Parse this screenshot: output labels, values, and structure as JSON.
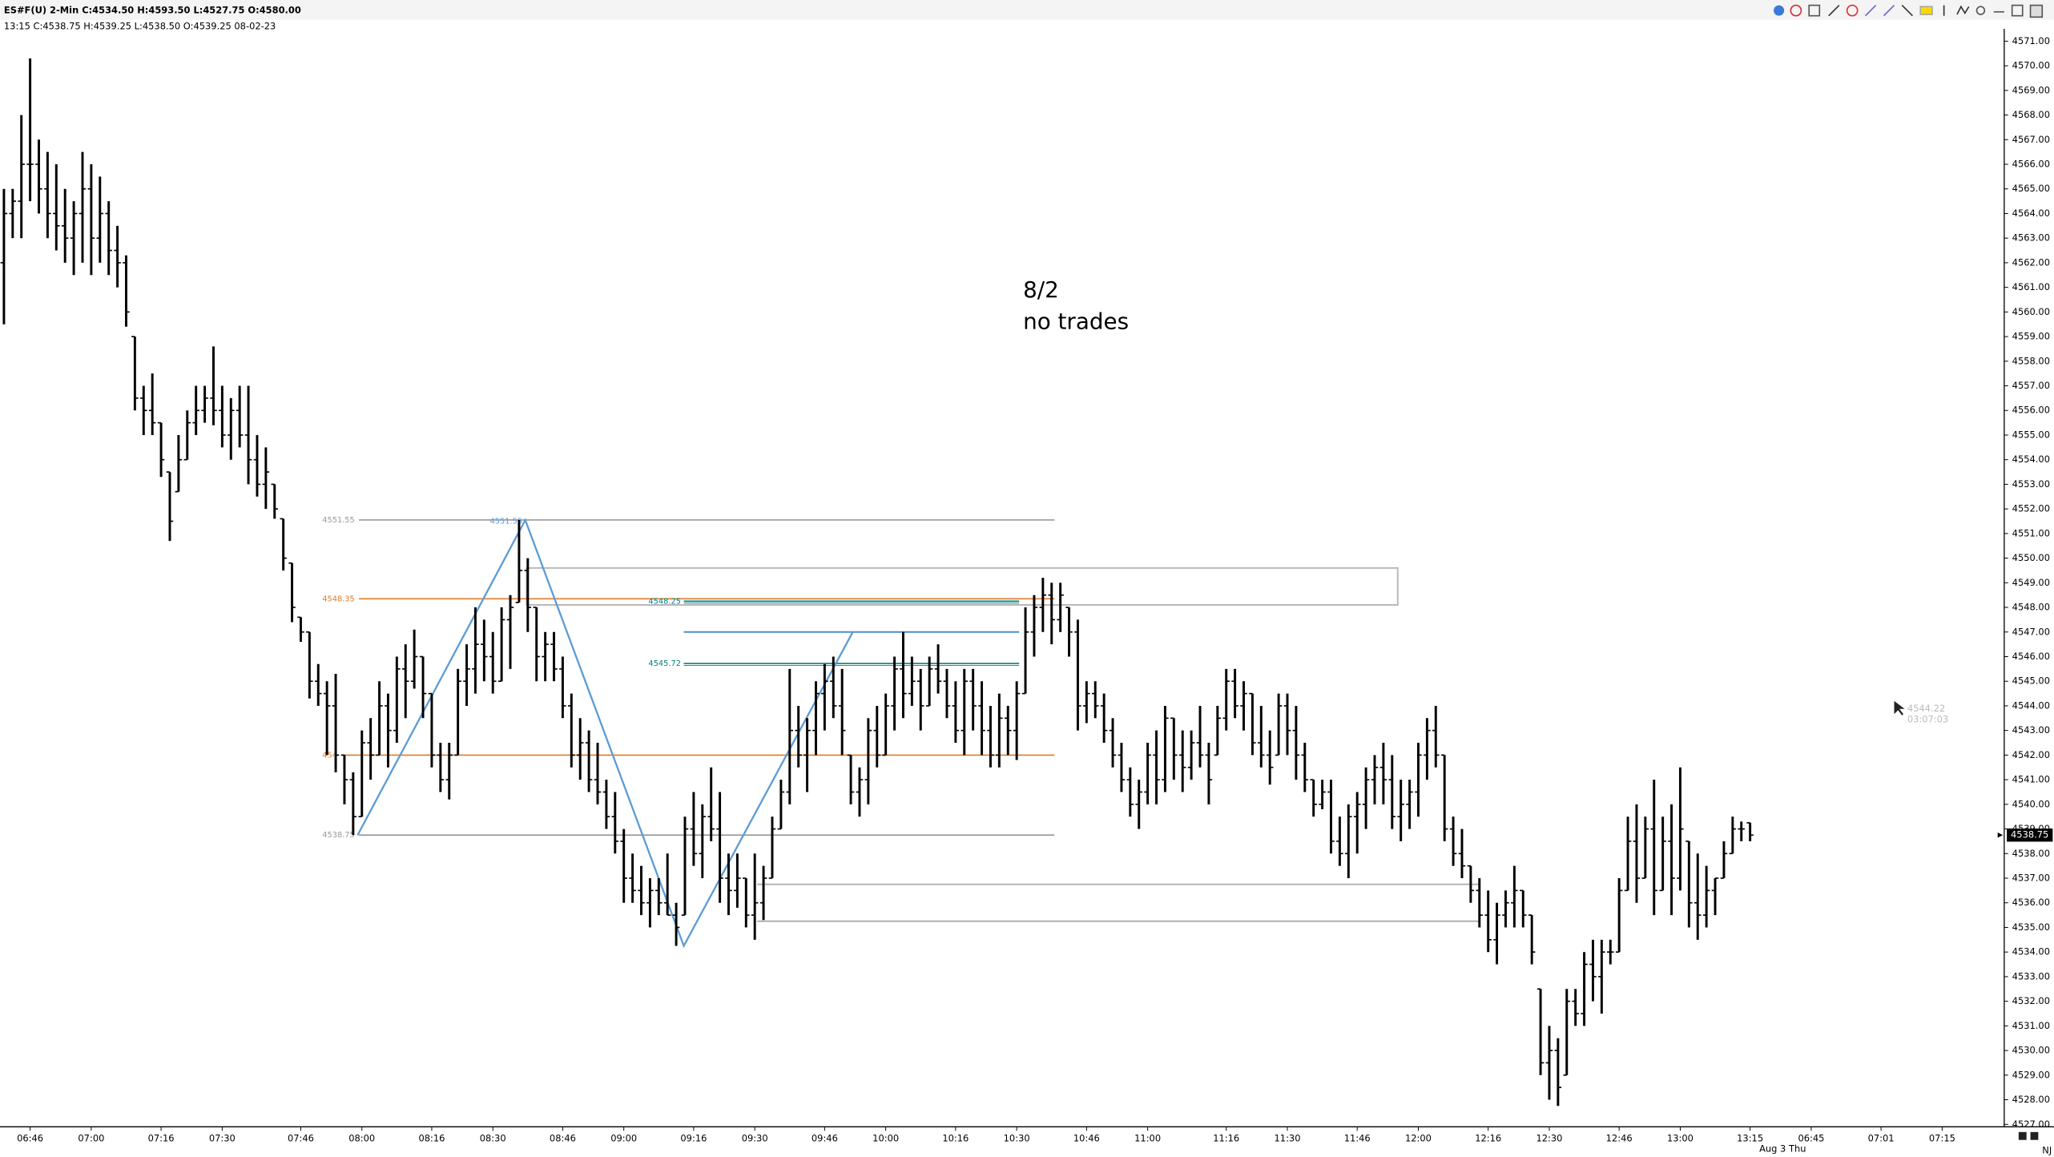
{
  "chart_data": {
    "type": "ohlc",
    "header": "ES#F(U)  2-Min  C:4534.50  H:4593.50  L:4527.75  O:4580.00",
    "subheader": "13:15  C:4538.75  H:4539.25  L:4538.50  O:4539.25  08-02-23",
    "annotation": [
      "8/2",
      "no trades"
    ],
    "date_label": "Aug 3 Thu",
    "corner_label": "NJ",
    "cursor_labels": [
      "4544.22",
      "03:07:03"
    ],
    "bar_color": "#000000",
    "categories": [
      null,
      null,
      null,
      "06:46",
      null,
      null,
      null,
      null,
      null,
      null,
      "07:00",
      null,
      null,
      null,
      null,
      null,
      null,
      null,
      "07:16",
      null,
      null,
      null,
      null,
      null,
      null,
      "07:30",
      null,
      null,
      null,
      null,
      null,
      null,
      null,
      null,
      "07:46",
      null,
      null,
      null,
      null,
      null,
      null,
      "08:00",
      null,
      null,
      null,
      null,
      null,
      null,
      null,
      "08:16",
      null,
      null,
      null,
      null,
      null,
      null,
      "08:30",
      null,
      null,
      null,
      null,
      null,
      null,
      null,
      "08:46",
      null,
      null,
      null,
      null,
      null,
      null,
      "09:00",
      null,
      null,
      null,
      null,
      null,
      null,
      null,
      "09:16",
      null,
      null,
      null,
      null,
      null,
      null,
      "09:30",
      null,
      null,
      null,
      null,
      null,
      null,
      null,
      "09:46",
      null,
      null,
      null,
      null,
      null,
      null,
      "10:00",
      null,
      null,
      null,
      null,
      null,
      null,
      null,
      "10:16",
      null,
      null,
      null,
      null,
      null,
      null,
      "10:30",
      null,
      null,
      null,
      null,
      null,
      null,
      null,
      "10:46",
      null,
      null,
      null,
      null,
      null,
      null,
      "11:00",
      null,
      null,
      null,
      null,
      null,
      null,
      null,
      null,
      "11:16",
      null,
      null,
      null,
      null,
      null,
      null,
      "11:30",
      null,
      null,
      null,
      null,
      null,
      null,
      null,
      "11:46",
      null,
      null,
      null,
      null,
      null,
      null,
      "12:00",
      null,
      null,
      null,
      null,
      null,
      null,
      null,
      "12:16",
      null,
      null,
      null,
      null,
      null,
      null,
      "12:30",
      null,
      null,
      null,
      null,
      null,
      null,
      null,
      "12:46",
      null,
      null,
      null,
      null,
      null,
      null,
      "13:00",
      null,
      null,
      null,
      null,
      null,
      null,
      null,
      "13:15",
      null,
      null,
      null,
      null,
      null,
      null,
      "06:45",
      null,
      null,
      null,
      null,
      null,
      null,
      null,
      "07:01",
      null,
      null,
      null,
      null,
      null,
      null,
      "07:15",
      null,
      null,
      null,
      null,
      null,
      null,
      null
    ],
    "open": [
      4562,
      4564,
      4564.5,
      4566,
      4566,
      4565,
      4564,
      4563.5,
      4563,
      4564,
      4565,
      4563,
      4564,
      4562.5,
      4562,
      4559,
      4556.5,
      4556,
      4555.5,
      4553.5,
      4552.7,
      4554,
      4555.5,
      4556,
      4556.5,
      4556,
      4555,
      4556,
      4555,
      4554,
      4553,
      4553,
      4551.6,
      4549.8,
      4547.6,
      4547,
      4545,
      4544.5,
      4544,
      4542,
      4541,
      4539.5,
      4542.5,
      4542,
      4544,
      4543,
      4545.5,
      4545,
      4546,
      4544.5,
      4542,
      4541,
      4542,
      4545,
      4545.5,
      4546.5,
      4546,
      4545,
      4547.5,
      4548.2,
      4549.5,
      4548,
      4546,
      4546.5,
      4545.5,
      4544,
      4542,
      4542.5,
      4541,
      4540.5,
      4539.5,
      4538.5,
      4537,
      4536.5,
      4536,
      4536.5,
      4536,
      4535.5,
      4535.5,
      4539,
      4538,
      4539.5,
      4539,
      4537,
      4536.5,
      4537,
      4535.5,
      4536,
      4537,
      4539,
      4540.5,
      4543,
      4542,
      4543,
      4544.5,
      4545,
      4544,
      4542,
      4540.5,
      4541,
      4543,
      4542,
      4544,
      4545.5,
      4544.5,
      4545,
      4544,
      4545.5,
      4545,
      4544,
      4543,
      4545,
      4544,
      4543,
      4542,
      4543.5,
      4543,
      4544.5,
      4547,
      4548,
      4548.5,
      4547.5,
      4548,
      4547,
      4544,
      4544.5,
      4544,
      4543,
      4542,
      4541,
      4540,
      4540.5,
      4542,
      4541,
      4543.5,
      4542,
      4541.5,
      4542.5,
      4542,
      4542,
      4543.5,
      4545,
      4544,
      4544.5,
      4542.5,
      4542,
      4542,
      4544,
      4543,
      4542,
      4541,
      4540,
      4540.5,
      4538.5,
      4538,
      4539.5,
      4540,
      4541,
      4541.5,
      4541,
      4539.5,
      4540,
      4540.5,
      4542,
      4543,
      4542,
      4539,
      4538,
      4537.5,
      4536.5,
      4535.5,
      4534.5,
      4535.5,
      4536,
      4536.5,
      4535.5,
      4532.5,
      4529.5,
      4530,
      4529,
      4532,
      4531.5,
      4533.5,
      4533,
      4534,
      4534,
      4536.5,
      4538.5,
      4537,
      4539,
      4536.5,
      4538.5,
      4537,
      4538.5,
      4536,
      4535.5,
      4536.5,
      4537,
      4538,
      4539,
      4539.25,
      null,
      null,
      null,
      null,
      null,
      null,
      null,
      null,
      null,
      null,
      null,
      null,
      null,
      null,
      null,
      null,
      null,
      null,
      null,
      null,
      null,
      null,
      null,
      null,
      null,
      null,
      null,
      null,
      null
    ],
    "high": [
      4565,
      4565,
      4568,
      4570.3,
      4567,
      4566.5,
      4566,
      4565,
      4564.5,
      4566.5,
      4566,
      4565.5,
      4564.5,
      4563.5,
      4562.3,
      4559,
      4557,
      4557.5,
      4555.5,
      4553.5,
      4555,
      4556,
      4557,
      4557,
      4558.6,
      4557,
      4556.5,
      4557,
      4557,
      4555,
      4554.5,
      4553,
      4551.6,
      4549.8,
      4547.6,
      4547,
      4545.7,
      4545,
      4545.3,
      4542,
      4541.3,
      4543,
      4543.5,
      4545,
      4544.5,
      4546,
      4546.5,
      4547.1,
      4546,
      4544.5,
      4542.5,
      4542.5,
      4545.5,
      4546.5,
      4548,
      4547.5,
      4547,
      4548,
      4548.5,
      4551.55,
      4550,
      4548,
      4547,
      4547,
      4546,
      4544.5,
      4543.5,
      4543,
      4542.5,
      4541,
      4540.5,
      4539,
      4538,
      4537.5,
      4537,
      4537,
      4538,
      4536,
      4539.5,
      4540.5,
      4540,
      4541.5,
      4540.5,
      4538,
      4538,
      4537,
      4538,
      4537.5,
      4539.5,
      4541,
      4545.5,
      4544,
      4543.5,
      4545,
      4545.7,
      4546,
      4545.5,
      4542,
      4541.5,
      4543.5,
      4544,
      4544.5,
      4546,
      4547,
      4546,
      4545.5,
      4546,
      4546.5,
      4545.5,
      4545,
      4545.5,
      4545.5,
      4545,
      4544,
      4544.5,
      4544,
      4545,
      4548,
      4548.5,
      4549.2,
      4549,
      4549,
      4548,
      4547.5,
      4545,
      4545,
      4544.5,
      4543.5,
      4542.5,
      4541.5,
      4541,
      4542.5,
      4543,
      4544,
      4543.5,
      4543,
      4543,
      4544,
      4542.5,
      4544,
      4545.5,
      4545.5,
      4545,
      4544.5,
      4544,
      4543,
      4544.5,
      4544.5,
      4544,
      4542.5,
      4541,
      4541,
      4541,
      4539.5,
      4540,
      4540.5,
      4541.5,
      4542,
      4542.5,
      4542,
      4541,
      4541,
      4542.5,
      4543.5,
      4544,
      4542,
      4539.5,
      4539,
      4537.5,
      4537,
      4536.5,
      4536,
      4536.5,
      4537.5,
      4536.5,
      4535.5,
      4532.5,
      4531,
      4530.5,
      4532.5,
      4532.5,
      4534,
      4534.5,
      4534.5,
      4534.5,
      4537,
      4539.5,
      4540,
      4539.5,
      4541,
      4539.5,
      4540,
      4541.5,
      4538.5,
      4538,
      4537.5,
      4537,
      4538.5,
      4539.5,
      4539.3,
      4539.25,
      null,
      null,
      null,
      null,
      null,
      null,
      null,
      null,
      null,
      null,
      null,
      null,
      null,
      null,
      null,
      null,
      null,
      null,
      null,
      null,
      null,
      null,
      null,
      null,
      null,
      null,
      null,
      null,
      null
    ],
    "low": [
      4559.5,
      4563,
      4563,
      4564.5,
      4564,
      4563,
      4562.5,
      4562,
      4561.5,
      4562,
      4561.5,
      4562,
      4561.5,
      4561,
      4559.4,
      4556,
      4555,
      4555,
      4553.3,
      4550.7,
      4552.7,
      4554,
      4555,
      4555.5,
      4555.4,
      4554.5,
      4554,
      4554.5,
      4553,
      4552.5,
      4552,
      4551.6,
      4549.5,
      4547.4,
      4546.6,
      4544.3,
      4544,
      4542,
      4541.3,
      4540,
      4538.75,
      4539.5,
      4541,
      4542,
      4541.5,
      4542.5,
      4543.5,
      4544.7,
      4543.5,
      4541.5,
      4540.5,
      4540.2,
      4542,
      4544,
      4544.5,
      4545,
      4544.5,
      4545,
      4545.5,
      4548.2,
      4547,
      4545,
      4545,
      4545,
      4543.5,
      4541.5,
      4541,
      4540.5,
      4540,
      4539,
      4538,
      4536,
      4536,
      4535.5,
      4535,
      4535.5,
      4535.5,
      4534.25,
      4535.5,
      4537.5,
      4537,
      4538.5,
      4536,
      4535.5,
      4535.8,
      4535,
      4534.5,
      4535.3,
      4537,
      4539,
      4540,
      4541.5,
      4540.5,
      4542,
      4543,
      4543.5,
      4542,
      4540,
      4539.5,
      4540,
      4541.5,
      4542,
      4543,
      4543.5,
      4544,
      4543,
      4544,
      4544.5,
      4543.5,
      4542.5,
      4542,
      4543,
      4542,
      4541.5,
      4541.5,
      4542,
      4541.8,
      4544.5,
      4546,
      4547,
      4546.5,
      4547,
      4546,
      4543,
      4543.3,
      4543.5,
      4542.5,
      4541.5,
      4540.5,
      4539.5,
      4539,
      4540,
      4540,
      4540.5,
      4541,
      4540.5,
      4541,
      4541.5,
      4540,
      4542,
      4543,
      4543.5,
      4543,
      4542,
      4541.5,
      4540.8,
      4542,
      4542,
      4541,
      4540.5,
      4539.5,
      4539.8,
      4538,
      4537.5,
      4537,
      4538,
      4539,
      4540,
      4540,
      4539,
      4538.5,
      4539,
      4539.5,
      4541,
      4541.5,
      4538.5,
      4537.5,
      4537,
      4536,
      4535,
      4534,
      4533.5,
      4535,
      4535,
      4535,
      4533.5,
      4529,
      4528,
      4527.75,
      4529,
      4531,
      4531,
      4532,
      4531.5,
      4533.5,
      4534,
      4536.5,
      4536,
      4537,
      4535.5,
      4536.5,
      4535.5,
      4536.5,
      4535,
      4534.5,
      4535,
      4535.5,
      4537,
      4538,
      4538.5,
      4538.5,
      null,
      null,
      null,
      null,
      null,
      null,
      null,
      null,
      null,
      null,
      null,
      null,
      null,
      null,
      null,
      null,
      null,
      null,
      null,
      null,
      null,
      null,
      null,
      null,
      null,
      null,
      null,
      null,
      null
    ],
    "close": [
      4564,
      4564.5,
      4566,
      4566,
      4565,
      4564,
      4563.5,
      4563,
      4564,
      4565,
      4563,
      4564,
      4562.5,
      4562,
      4560,
      4556.5,
      4556,
      4555.5,
      4554,
      4551.5,
      4554,
      4555.5,
      4556,
      4556.5,
      4556,
      4555,
      4556,
      4555,
      4554,
      4553,
      4553.5,
      4552,
      4550,
      4548,
      4547,
      4545,
      4544.5,
      4544,
      4542,
      4541,
      4539.5,
      4542.5,
      4542,
      4544,
      4543,
      4545.5,
      4545,
      4546,
      4544.5,
      4542,
      4541,
      4542,
      4545,
      4545.5,
      4546.5,
      4546,
      4545,
      4547.5,
      4548,
      4549.5,
      4548,
      4546,
      4546.5,
      4545.5,
      4544,
      4542,
      4542.5,
      4541,
      4540.5,
      4539.5,
      4538.5,
      4537,
      4536.5,
      4536,
      4536.5,
      4536,
      4535.5,
      4535,
      4539,
      4538,
      4539.5,
      4539,
      4537,
      4536.5,
      4537,
      4535.5,
      4536,
      4537,
      4539,
      4540.5,
      4543,
      4542,
      4543,
      4544.5,
      4545,
      4544,
      4543,
      4540.5,
      4541,
      4543,
      4542,
      4544,
      4545.5,
      4544.5,
      4545,
      4544,
      4545.5,
      4545,
      4544,
      4543,
      4545,
      4544,
      4543,
      4542,
      4543.5,
      4543,
      4544.5,
      4547,
      4548,
      4548.5,
      4547.5,
      4548.5,
      4547,
      4544,
      4544.5,
      4544,
      4543,
      4542,
      4541,
      4540,
      4540.5,
      4542,
      4541,
      4543.5,
      4542,
      4541.5,
      4542.5,
      4542,
      4541,
      4543.5,
      4545,
      4544,
      4544.5,
      4542.5,
      4542,
      4541.5,
      4544,
      4543,
      4542,
      4541,
      4540,
      4540.5,
      4538.5,
      4538,
      4539.5,
      4540,
      4541,
      4541.5,
      4541,
      4539.5,
      4540,
      4540.5,
      4542,
      4543,
      4542,
      4539,
      4538,
      4537.5,
      4536.5,
      4535.5,
      4534.5,
      4535.5,
      4536,
      4536.5,
      4535.5,
      4534,
      4529.5,
      4530,
      4528.5,
      4532,
      4531.5,
      4533.5,
      4533,
      4534,
      4534,
      4536.5,
      4538.5,
      4537,
      4539,
      4536.5,
      4538.5,
      4537,
      4539,
      4536,
      4535.5,
      4536.5,
      4537,
      4538,
      4539,
      4539,
      4538.75,
      null,
      null,
      null,
      null,
      null,
      null,
      null,
      null,
      null,
      null,
      null,
      null,
      null,
      null,
      null,
      null,
      null,
      null,
      null,
      null,
      null,
      null,
      null,
      null,
      null,
      null,
      null,
      null,
      null
    ],
    "ylim": [
      4526.9,
      4571.5
    ],
    "yticks": [
      {
        "value": 4527,
        "label": "4527.00"
      },
      {
        "value": 4528,
        "label": "4528.00"
      },
      {
        "value": 4529,
        "label": "4529.00"
      },
      {
        "value": 4530,
        "label": "4530.00"
      },
      {
        "value": 4531,
        "label": "4531.00"
      },
      {
        "value": 4532,
        "label": "4532.00"
      },
      {
        "value": 4533,
        "label": "4533.00"
      },
      {
        "value": 4534,
        "label": "4534.00"
      },
      {
        "value": 4535,
        "label": "4535.00"
      },
      {
        "value": 4536,
        "label": "4536.00"
      },
      {
        "value": 4537,
        "label": "4537.00"
      },
      {
        "value": 4538,
        "label": "4538.00"
      },
      {
        "value": 4539,
        "label": "4539.00"
      },
      {
        "value": 4540,
        "label": "4540.00"
      },
      {
        "value": 4541,
        "label": "4541.00"
      },
      {
        "value": 4542,
        "label": "4542.00"
      },
      {
        "value": 4543,
        "label": "4543.00"
      },
      {
        "value": 4544,
        "label": "4544.00"
      },
      {
        "value": 4545,
        "label": "4545.00"
      },
      {
        "value": 4546,
        "label": "4546.00"
      },
      {
        "value": 4547,
        "label": "4547.00"
      },
      {
        "value": 4548,
        "label": "4548.00"
      },
      {
        "value": 4549,
        "label": "4549.00"
      },
      {
        "value": 4550,
        "label": "4550.00"
      },
      {
        "value": 4551,
        "label": "4551.00"
      },
      {
        "value": 4552,
        "label": "4552.00"
      },
      {
        "value": 4553,
        "label": "4553.00"
      },
      {
        "value": 4554,
        "label": "4554.00"
      },
      {
        "value": 4555,
        "label": "4555.00"
      },
      {
        "value": 4556,
        "label": "4556.00"
      },
      {
        "value": 4557,
        "label": "4557.00"
      },
      {
        "value": 4558,
        "label": "4558.00"
      },
      {
        "value": 4559,
        "label": "4559.00"
      },
      {
        "value": 4560,
        "label": "4560.00"
      },
      {
        "value": 4561,
        "label": "4561.00"
      },
      {
        "value": 4562,
        "label": "4562.00"
      },
      {
        "value": 4563,
        "label": "4563.00"
      },
      {
        "value": 4564,
        "label": "4564.00"
      },
      {
        "value": 4565,
        "label": "4565.00"
      },
      {
        "value": 4566,
        "label": "4566.00"
      },
      {
        "value": 4567,
        "label": "4567.00"
      },
      {
        "value": 4568,
        "label": "4568.00"
      },
      {
        "value": 4569,
        "label": "4569.00"
      },
      {
        "value": 4570,
        "label": "4570.00"
      },
      {
        "value": 4571,
        "label": "4571.00"
      }
    ],
    "levels": [
      {
        "value": 4551.55,
        "color": "#999999"
      },
      {
        "value": 4548.35,
        "color": "#e07b28"
      },
      {
        "value": 4542,
        "label": "454",
        "color": "#e07b28"
      },
      {
        "value": 4538.75,
        "color": "#999999"
      }
    ],
    "teal_levels": [
      {
        "value": 4548.25
      },
      {
        "value": 4545.72
      }
    ],
    "teal_color": "#00827f",
    "lines": [
      {
        "value": 4547,
        "color": "#4a8fd4"
      },
      {
        "value": 4536.75,
        "color": "#b0b0b0"
      },
      {
        "value": 4535.25,
        "color": "#b0b0b0"
      }
    ],
    "box": [
      4549.6,
      4548.1
    ],
    "box_color": "#b8b8b8",
    "zigzag": {
      "values": [
        4538.75,
        4551.55,
        4534.25,
        4547
      ],
      "color": "#5b9bd5"
    }
  }
}
